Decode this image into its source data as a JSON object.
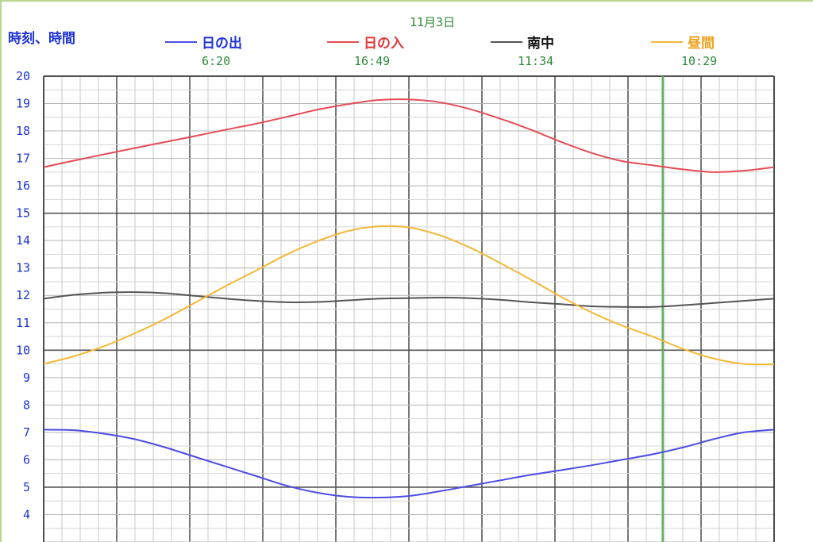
{
  "y_title": "時刻、時間",
  "date": "11月3日",
  "chart_data": {
    "type": "line",
    "ylabel": "時刻、時間",
    "ylim": [
      3,
      20
    ],
    "y_ticks": [
      20,
      19,
      18,
      17,
      16,
      15,
      14,
      13,
      12,
      11,
      10,
      9,
      8,
      7,
      6,
      5,
      4
    ],
    "x_range": [
      0,
      12
    ],
    "current_marker_x": 10.17,
    "grid": true,
    "series": [
      {
        "name": "日の出",
        "color": "#4c4ce6",
        "display_value": "6:20",
        "points": [
          [
            0,
            7.1
          ],
          [
            0.5,
            7.08
          ],
          [
            1,
            6.95
          ],
          [
            1.5,
            6.75
          ],
          [
            2,
            6.45
          ],
          [
            2.5,
            6.1
          ],
          [
            3,
            5.75
          ],
          [
            3.5,
            5.4
          ],
          [
            4,
            5.05
          ],
          [
            4.5,
            4.8
          ],
          [
            5,
            4.65
          ],
          [
            5.5,
            4.62
          ],
          [
            6,
            4.68
          ],
          [
            6.5,
            4.85
          ],
          [
            7,
            5.05
          ],
          [
            7.5,
            5.25
          ],
          [
            8,
            5.45
          ],
          [
            8.5,
            5.62
          ],
          [
            9,
            5.8
          ],
          [
            9.5,
            6.0
          ],
          [
            10,
            6.2
          ],
          [
            10.5,
            6.45
          ],
          [
            11,
            6.75
          ],
          [
            11.5,
            7.0
          ],
          [
            12,
            7.1
          ]
        ]
      },
      {
        "name": "日の入",
        "color": "#e64c55",
        "display_value": "16:49",
        "points": [
          [
            0,
            16.68
          ],
          [
            0.5,
            16.92
          ],
          [
            1,
            17.15
          ],
          [
            1.5,
            17.38
          ],
          [
            2,
            17.6
          ],
          [
            2.5,
            17.82
          ],
          [
            3,
            18.05
          ],
          [
            3.5,
            18.27
          ],
          [
            4,
            18.52
          ],
          [
            4.5,
            18.78
          ],
          [
            5,
            18.98
          ],
          [
            5.5,
            19.13
          ],
          [
            6,
            19.15
          ],
          [
            6.5,
            19.05
          ],
          [
            7,
            18.8
          ],
          [
            7.5,
            18.45
          ],
          [
            8,
            18.05
          ],
          [
            8.5,
            17.6
          ],
          [
            9,
            17.2
          ],
          [
            9.5,
            16.9
          ],
          [
            10,
            16.75
          ],
          [
            10.5,
            16.6
          ],
          [
            11,
            16.5
          ],
          [
            11.5,
            16.55
          ],
          [
            12,
            16.68
          ]
        ]
      },
      {
        "name": "南中",
        "color": "#555555",
        "display_value": "11:34",
        "points": [
          [
            0,
            11.88
          ],
          [
            0.5,
            12.02
          ],
          [
            1,
            12.1
          ],
          [
            1.5,
            12.12
          ],
          [
            2,
            12.08
          ],
          [
            2.5,
            11.98
          ],
          [
            3,
            11.88
          ],
          [
            3.5,
            11.8
          ],
          [
            4,
            11.75
          ],
          [
            4.5,
            11.76
          ],
          [
            5,
            11.82
          ],
          [
            5.5,
            11.88
          ],
          [
            6,
            11.9
          ],
          [
            6.5,
            11.92
          ],
          [
            7,
            11.9
          ],
          [
            7.5,
            11.84
          ],
          [
            8,
            11.75
          ],
          [
            8.5,
            11.68
          ],
          [
            9,
            11.6
          ],
          [
            9.5,
            11.58
          ],
          [
            10,
            11.58
          ],
          [
            10.5,
            11.64
          ],
          [
            11,
            11.72
          ],
          [
            11.5,
            11.8
          ],
          [
            12,
            11.88
          ]
        ]
      },
      {
        "name": "昼間",
        "color": "#f5b836",
        "display_value": "10:29",
        "points": [
          [
            0,
            9.5
          ],
          [
            0.5,
            9.78
          ],
          [
            1,
            10.15
          ],
          [
            1.5,
            10.62
          ],
          [
            2,
            11.15
          ],
          [
            2.5,
            11.75
          ],
          [
            3,
            12.35
          ],
          [
            3.5,
            12.92
          ],
          [
            4,
            13.5
          ],
          [
            4.5,
            13.98
          ],
          [
            5,
            14.35
          ],
          [
            5.5,
            14.52
          ],
          [
            6,
            14.48
          ],
          [
            6.5,
            14.2
          ],
          [
            7,
            13.75
          ],
          [
            7.5,
            13.18
          ],
          [
            8,
            12.58
          ],
          [
            8.5,
            11.95
          ],
          [
            9,
            11.38
          ],
          [
            9.5,
            10.9
          ],
          [
            10,
            10.5
          ],
          [
            10.5,
            10.05
          ],
          [
            11,
            9.7
          ],
          [
            11.5,
            9.5
          ],
          [
            12,
            9.48
          ]
        ]
      }
    ]
  }
}
